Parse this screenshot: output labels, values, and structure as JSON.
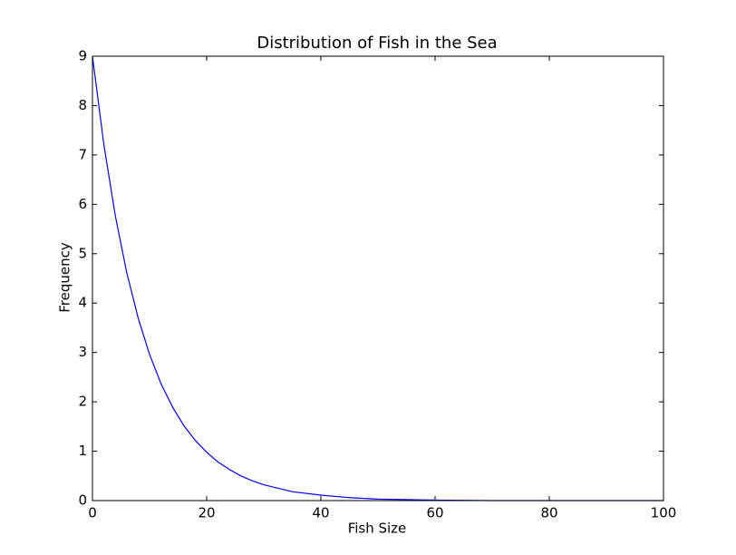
{
  "chart_data": {
    "type": "line",
    "title": "Distribution of Fish in the Sea",
    "x_label": "Fish Size",
    "y_label": "Frequency",
    "x": [
      0,
      2,
      4,
      6,
      8,
      10,
      12,
      14,
      16,
      18,
      20,
      22,
      24,
      26,
      28,
      30,
      35,
      40,
      45,
      50,
      60,
      70,
      80,
      90,
      100
    ],
    "series": [
      {
        "color": "#0000ff",
        "values": [
          9,
          7.21,
          5.77,
          4.62,
          3.7,
          2.96,
          2.37,
          1.9,
          1.52,
          1.22,
          0.98,
          0.78,
          0.63,
          0.5,
          0.4,
          0.32,
          0.18,
          0.11,
          0.06,
          0.03,
          0.01,
          0,
          0,
          0,
          0
        ]
      }
    ],
    "xlim": [
      0,
      100
    ],
    "xticks": [
      0,
      20,
      40,
      60,
      80,
      100
    ],
    "ylim": [
      0,
      9
    ],
    "yticks": [
      0,
      1,
      2,
      3,
      4,
      5,
      6,
      7,
      8,
      9
    ],
    "grid": false
  }
}
